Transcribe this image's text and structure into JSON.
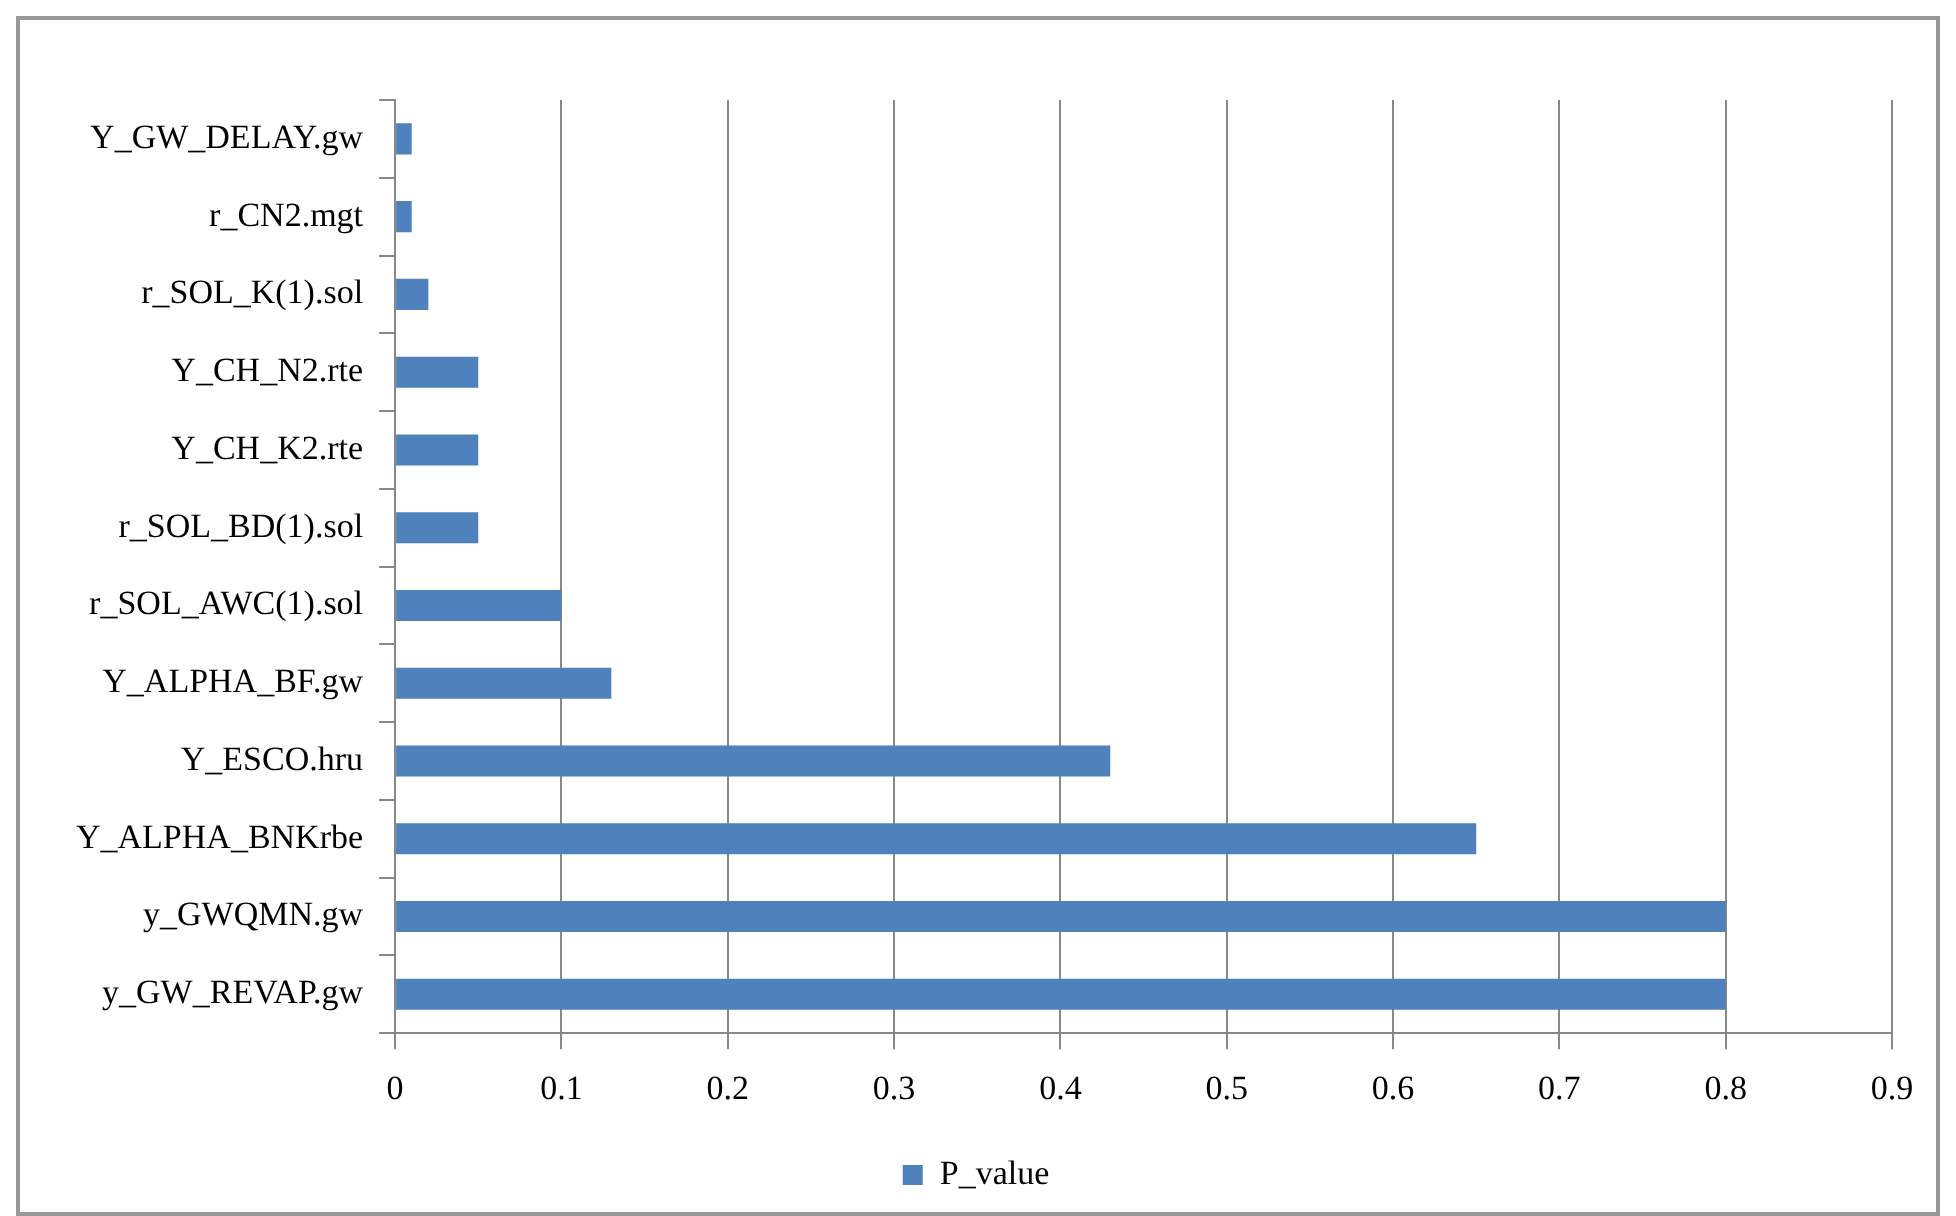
{
  "chart_data": {
    "type": "bar",
    "orientation": "horizontal",
    "categories": [
      "Y_GW_DELAY.gw",
      "r_CN2.mgt",
      "r_SOL_K(1).sol",
      "Y_CH_N2.rte",
      "Y_CH_K2.rte",
      "r_SOL_BD(1).sol",
      "r_SOL_AWC(1).sol",
      "Y_ALPHA_BF.gw",
      "Y_ESCO.hru",
      "Y_ALPHA_BNKrbe",
      "y_GWQMN.gw",
      "y_GW_REVAP.gw"
    ],
    "series": [
      {
        "name": "P_value",
        "color": "#4f81bd",
        "values": [
          0.01,
          0.01,
          0.02,
          0.05,
          0.05,
          0.05,
          0.1,
          0.13,
          0.43,
          0.65,
          0.8,
          0.8
        ]
      }
    ],
    "xlim": [
      0,
      0.9
    ],
    "xticks": [
      0,
      0.1,
      0.2,
      0.3,
      0.4,
      0.5,
      0.6,
      0.7,
      0.8,
      0.9
    ],
    "grid": "x",
    "legend": "bottom"
  }
}
